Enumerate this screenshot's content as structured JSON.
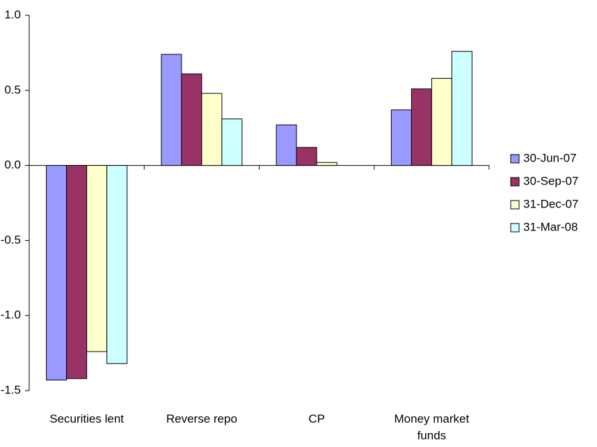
{
  "chart_data": {
    "type": "bar",
    "categories": [
      "Securities lent",
      "Reverse repo",
      "CP",
      "Money market funds"
    ],
    "series": [
      {
        "name": "30-Jun-07",
        "color": "#9999ff",
        "values": [
          -1.43,
          0.74,
          0.27,
          0.37
        ]
      },
      {
        "name": "30-Sep-07",
        "color": "#993366",
        "values": [
          -1.42,
          0.61,
          0.12,
          0.51
        ]
      },
      {
        "name": "31-Dec-07",
        "color": "#ffffcc",
        "values": [
          -1.24,
          0.48,
          0.02,
          0.58
        ]
      },
      {
        "name": "31-Mar-08",
        "color": "#ccffff",
        "values": [
          -1.32,
          0.31,
          0,
          0.76
        ]
      }
    ],
    "ylim": [
      -1.5,
      1.0
    ],
    "yticks": [
      -1.5,
      -0.5,
      {
        "value": -1.0,
        "label": "-1.0"
      },
      {
        "value": 0,
        "label": "0.0"
      },
      0.5,
      {
        "value": 1.0,
        "label": "1.0"
      }
    ],
    "legend": "right"
  }
}
